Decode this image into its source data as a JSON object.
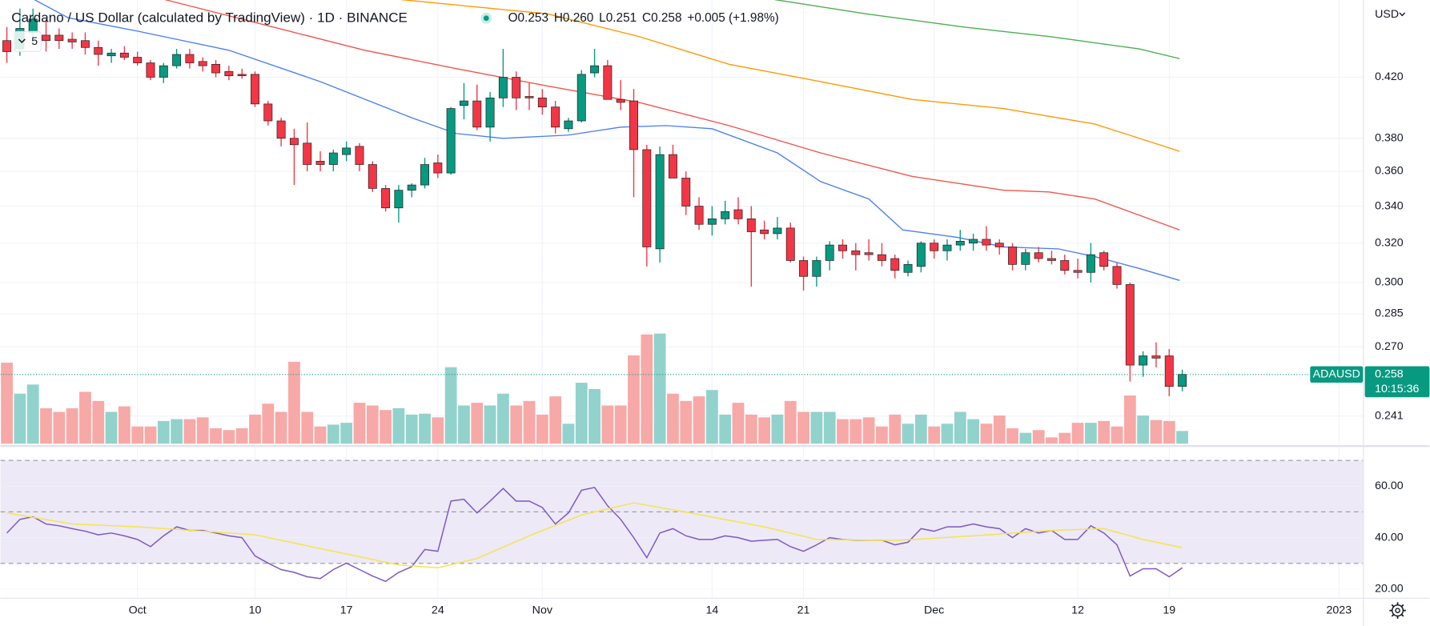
{
  "chart_data": [
    {
      "type": "candlestick",
      "title": "Cardano / US Dollar (calculated by TradingView) · 1D · BINANCE",
      "legend_ohlc": [
        "O0.253",
        "H0.260",
        "L0.251",
        "C0.258",
        "+0.005 (+1.98%)"
      ],
      "indicator_count": 5,
      "currency": "USD",
      "symbol": "ADAUSD",
      "last_price": 0.258,
      "countdown": "10:15:36",
      "log_scale": true,
      "grid": true,
      "up_color": "#089981",
      "down_color": "#f23645",
      "up_volume_color": "#92d2cc",
      "down_volume_color": "#f7a9a7",
      "xlim": [
        -0.49,
        103.84
      ],
      "ylim": [
        0.2303,
        0.4767
      ],
      "volume_lim": [
        0,
        125
      ],
      "xticks": [
        {
          "value": 10,
          "label": "Oct"
        },
        {
          "value": 19,
          "label": "10"
        },
        {
          "value": 26,
          "label": "17"
        },
        {
          "value": 33,
          "label": "24"
        },
        {
          "value": 41,
          "label": "Nov"
        },
        {
          "value": 54,
          "label": "14"
        },
        {
          "value": 61,
          "label": "21"
        },
        {
          "value": 71,
          "label": "Dec"
        },
        {
          "value": 82,
          "label": "12"
        },
        {
          "value": 89,
          "label": "19"
        },
        {
          "value": 102,
          "label": "2023"
        }
      ],
      "yticks": [
        0.241,
        {
          "value": 0.27,
          "label": "0.270"
        },
        0.285,
        {
          "value": 0.3,
          "label": "0.300"
        },
        {
          "value": 0.32,
          "label": "0.320"
        },
        {
          "value": 0.34,
          "label": "0.340"
        },
        {
          "value": 0.36,
          "label": "0.360"
        },
        {
          "value": 0.38,
          "label": "0.380"
        },
        {
          "value": 0.42,
          "label": "0.420"
        }
      ],
      "open": [
        0.446,
        0.44,
        0.452,
        0.45,
        0.45,
        0.447,
        0.446,
        0.441,
        0.435,
        0.437,
        0.434,
        0.43,
        0.42,
        0.428,
        0.436,
        0.431,
        0.429,
        0.424,
        0.422,
        0.422,
        0.402,
        0.391,
        0.38,
        0.377,
        0.366,
        0.364,
        0.37,
        0.375,
        0.364,
        0.35,
        0.339,
        0.349,
        0.352,
        0.365,
        0.359,
        0.401,
        0.404,
        0.387,
        0.406,
        0.42,
        0.407,
        0.406,
        0.4,
        0.386,
        0.391,
        0.423,
        0.428,
        0.405,
        0.404,
        0.373,
        0.317,
        0.37,
        0.356,
        0.34,
        0.33,
        0.333,
        0.338,
        0.333,
        0.327,
        0.325,
        0.328,
        0.311,
        0.303,
        0.311,
        0.319,
        0.316,
        0.315,
        0.314,
        0.312,
        0.305,
        0.308,
        0.32,
        0.316,
        0.319,
        0.32,
        0.322,
        0.32,
        0.318,
        0.309,
        0.315,
        0.312,
        0.311,
        0.306,
        0.305,
        0.315,
        0.308,
        0.299,
        0.262,
        0.266,
        0.266,
        0.253
      ],
      "high": [
        0.456,
        0.47,
        0.47,
        0.462,
        0.455,
        0.452,
        0.452,
        0.446,
        0.44,
        0.442,
        0.438,
        0.432,
        0.43,
        0.44,
        0.44,
        0.434,
        0.432,
        0.428,
        0.426,
        0.424,
        0.404,
        0.393,
        0.386,
        0.39,
        0.372,
        0.373,
        0.378,
        0.377,
        0.366,
        0.352,
        0.352,
        0.353,
        0.368,
        0.37,
        0.4,
        0.416,
        0.415,
        0.41,
        0.44,
        0.424,
        0.416,
        0.412,
        0.404,
        0.393,
        0.425,
        0.44,
        0.432,
        0.418,
        0.412,
        0.376,
        0.375,
        0.376,
        0.36,
        0.345,
        0.34,
        0.343,
        0.345,
        0.34,
        0.332,
        0.334,
        0.331,
        0.313,
        0.313,
        0.321,
        0.322,
        0.32,
        0.322,
        0.32,
        0.314,
        0.311,
        0.321,
        0.322,
        0.322,
        0.327,
        0.325,
        0.329,
        0.322,
        0.32,
        0.317,
        0.318,
        0.316,
        0.314,
        0.312,
        0.32,
        0.316,
        0.31,
        0.3,
        0.268,
        0.272,
        0.269,
        0.26
      ],
      "low": [
        0.43,
        0.435,
        0.445,
        0.438,
        0.44,
        0.44,
        0.436,
        0.428,
        0.43,
        0.432,
        0.428,
        0.418,
        0.416,
        0.426,
        0.426,
        0.424,
        0.42,
        0.418,
        0.419,
        0.4,
        0.388,
        0.375,
        0.352,
        0.36,
        0.36,
        0.36,
        0.366,
        0.36,
        0.348,
        0.337,
        0.331,
        0.345,
        0.35,
        0.356,
        0.358,
        0.392,
        0.385,
        0.378,
        0.4,
        0.398,
        0.398,
        0.395,
        0.383,
        0.384,
        0.39,
        0.42,
        0.405,
        0.398,
        0.345,
        0.308,
        0.31,
        0.356,
        0.335,
        0.327,
        0.324,
        0.33,
        0.33,
        0.298,
        0.322,
        0.322,
        0.31,
        0.296,
        0.298,
        0.306,
        0.312,
        0.306,
        0.311,
        0.308,
        0.302,
        0.303,
        0.305,
        0.312,
        0.311,
        0.316,
        0.316,
        0.316,
        0.314,
        0.306,
        0.306,
        0.31,
        0.309,
        0.304,
        0.302,
        0.3,
        0.306,
        0.297,
        0.255,
        0.257,
        0.261,
        0.249,
        0.251
      ],
      "close": [
        0.438,
        0.455,
        0.462,
        0.446,
        0.446,
        0.445,
        0.441,
        0.436,
        0.437,
        0.434,
        0.43,
        0.42,
        0.428,
        0.436,
        0.43,
        0.428,
        0.423,
        0.421,
        0.421,
        0.402,
        0.391,
        0.38,
        0.376,
        0.364,
        0.364,
        0.371,
        0.374,
        0.364,
        0.35,
        0.339,
        0.349,
        0.352,
        0.364,
        0.359,
        0.399,
        0.404,
        0.387,
        0.406,
        0.42,
        0.406,
        0.406,
        0.4,
        0.387,
        0.391,
        0.422,
        0.428,
        0.405,
        0.403,
        0.373,
        0.318,
        0.37,
        0.356,
        0.34,
        0.33,
        0.333,
        0.337,
        0.333,
        0.326,
        0.325,
        0.328,
        0.311,
        0.303,
        0.311,
        0.319,
        0.316,
        0.314,
        0.314,
        0.311,
        0.306,
        0.309,
        0.32,
        0.316,
        0.319,
        0.321,
        0.322,
        0.319,
        0.318,
        0.309,
        0.315,
        0.312,
        0.311,
        0.306,
        0.305,
        0.314,
        0.308,
        0.299,
        0.262,
        0.266,
        0.265,
        0.253,
        0.258
      ],
      "volume": [
        89,
        55,
        65,
        39,
        35,
        39,
        57,
        47,
        35,
        41,
        19,
        19,
        25,
        27,
        27,
        29,
        17,
        15,
        17,
        32,
        44,
        35,
        90,
        35,
        19,
        21,
        23,
        45,
        42,
        37,
        39,
        32,
        33,
        29,
        84,
        42,
        45,
        42,
        55,
        42,
        47,
        32,
        52,
        22,
        67,
        60,
        42,
        42,
        97,
        120,
        121,
        55,
        47,
        52,
        59,
        32,
        45,
        32,
        29,
        32,
        47,
        35,
        35,
        35,
        27,
        27,
        29,
        19,
        32,
        22,
        32,
        19,
        22,
        35,
        27,
        22,
        31,
        17,
        12,
        15,
        7,
        12,
        23,
        23,
        25,
        19,
        53,
        31,
        26,
        25,
        14
      ],
      "moving_averages": [
        {
          "color": "#4a7ff0",
          "x": [
            2.1,
            4.7,
            10,
            17,
            24,
            31,
            34.4,
            38,
            43,
            47,
            50.5,
            54,
            59,
            62.3,
            66,
            68.6,
            72.8,
            76.3,
            80.5,
            83.3,
            86.7,
            89.8
          ],
          "values": [
            0.477,
            0.463,
            0.453,
            0.439,
            0.417,
            0.393,
            0.383,
            0.38,
            0.382,
            0.387,
            0.388,
            0.386,
            0.371,
            0.354,
            0.344,
            0.327,
            0.323,
            0.318,
            0.317,
            0.313,
            0.307,
            0.301
          ]
        },
        {
          "color": "#f0554c",
          "x": [
            12.1,
            20.4,
            27.4,
            34.4,
            41.4,
            48.4,
            55.3,
            62.3,
            69.3,
            76.3,
            79.8,
            83.3,
            86.7,
            89.8
          ],
          "values": [
            0.477,
            0.456,
            0.439,
            0.426,
            0.414,
            0.403,
            0.388,
            0.371,
            0.357,
            0.349,
            0.348,
            0.344,
            0.335,
            0.327
          ]
        },
        {
          "color": "#ff9800",
          "x": [
            30.2,
            41.4,
            48.4,
            55.3,
            62.3,
            69.3,
            76.3,
            83.3,
            89.8
          ],
          "values": [
            0.477,
            0.466,
            0.449,
            0.429,
            0.417,
            0.405,
            0.399,
            0.389,
            0.372
          ]
        },
        {
          "color": "#4caf50",
          "x": [
            58.8,
            65.8,
            73.3,
            79.8,
            86.7,
            89.8
          ],
          "values": [
            0.477,
            0.466,
            0.456,
            0.449,
            0.44,
            0.433
          ]
        }
      ]
    },
    {
      "type": "line",
      "ylim": [
        17,
        74.7
      ],
      "yticks": [
        {
          "value": 60,
          "label": "60.00"
        },
        {
          "value": 40,
          "label": "40.00"
        },
        {
          "value": 20,
          "label": "20.00"
        }
      ],
      "bands": [
        30,
        50,
        70
      ],
      "band_color": "#ede9f7",
      "series": [
        {
          "color": "#7e57c2",
          "values": [
            41.8,
            47.1,
            48.1,
            45.3,
            44.6,
            43.5,
            42.5,
            41.1,
            41.8,
            40.7,
            39.3,
            36.5,
            40.7,
            44.2,
            42.8,
            42.8,
            41.8,
            40.7,
            40.0,
            32.9,
            30.1,
            27.6,
            26.5,
            24.8,
            24.1,
            27.6,
            30.1,
            27.6,
            25.1,
            23.0,
            26.5,
            28.7,
            35.4,
            34.7,
            54.2,
            54.9,
            49.6,
            54.2,
            59.1,
            54.2,
            54.2,
            51.7,
            45.3,
            49.6,
            58.4,
            59.5,
            52.4,
            47.1,
            40.0,
            32.2,
            41.8,
            43.5,
            40.7,
            39.3,
            39.3,
            40.7,
            40.0,
            38.6,
            39.0,
            39.3,
            36.5,
            34.7,
            37.2,
            40.0,
            39.3,
            39.0,
            39.0,
            39.0,
            37.2,
            38.2,
            43.5,
            42.5,
            44.2,
            44.2,
            45.3,
            44.2,
            43.5,
            40.0,
            43.5,
            41.8,
            42.8,
            39.3,
            39.3,
            44.6,
            41.8,
            37.2,
            25.1,
            27.9,
            27.9,
            24.8,
            28.3
          ]
        },
        {
          "color": "#f5e44a",
          "x": [
            0,
            5,
            10,
            15,
            19,
            25,
            30,
            33,
            36,
            40,
            44,
            48,
            52,
            58,
            62,
            68,
            74,
            80,
            84,
            87,
            90
          ],
          "values": [
            49.6,
            45.3,
            44.2,
            42.5,
            41.1,
            34.7,
            29.4,
            28.3,
            31.9,
            40.7,
            48.8,
            53.5,
            49.9,
            44.2,
            39.3,
            38.9,
            40.7,
            42.8,
            43.5,
            39.3,
            36.1
          ]
        }
      ]
    }
  ]
}
